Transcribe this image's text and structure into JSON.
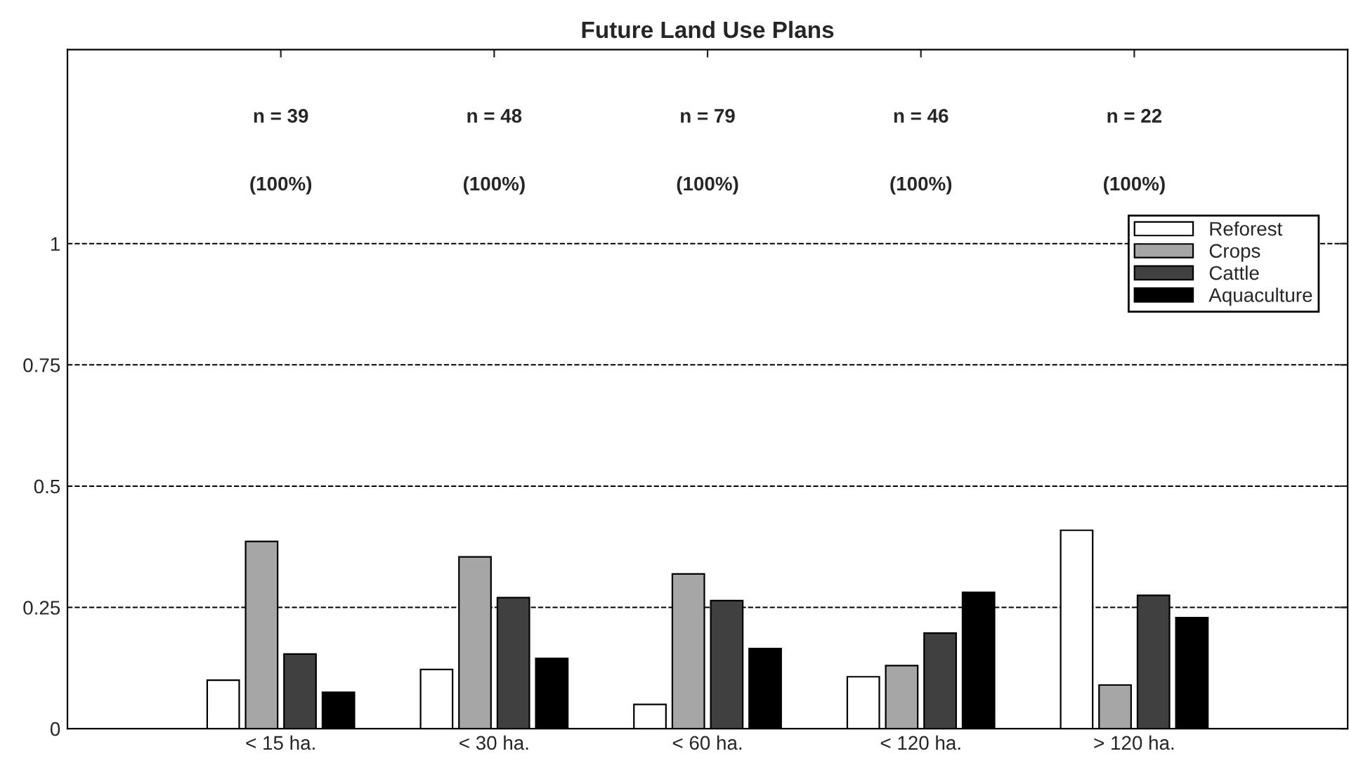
{
  "chart_data": {
    "type": "bar",
    "title": "Future Land Use Plans",
    "categories": [
      "< 15 ha.",
      "< 30 ha.",
      "< 60 ha.",
      "< 120 ha.",
      "> 120 ha."
    ],
    "series": [
      {
        "name": "Reforest",
        "color": "#ffffff",
        "values": [
          0.1,
          0.122,
          0.05,
          0.107,
          0.409
        ]
      },
      {
        "name": "Crops",
        "color": "#a6a6a6",
        "values": [
          0.386,
          0.354,
          0.319,
          0.13,
          0.09
        ]
      },
      {
        "name": "Cattle",
        "color": "#404040",
        "values": [
          0.154,
          0.27,
          0.264,
          0.197,
          0.275
        ]
      },
      {
        "name": "Aquaculture",
        "color": "#000000",
        "values": [
          0.075,
          0.145,
          0.165,
          0.281,
          0.229
        ]
      }
    ],
    "ylim": [
      0,
      1.4
    ],
    "yticks": [
      0,
      {
        "value": 0.25,
        "label": "0.25"
      },
      {
        "value": 0.5,
        "label": "0.5"
      },
      {
        "value": 0.75,
        "label": "0.75"
      },
      1
    ],
    "grid": "y",
    "legend": "top right",
    "annotations": [
      "n = 39",
      "(100%)",
      "n = 48",
      "(100%)",
      "n = 79",
      "(100%)",
      "n = 46",
      "(100%)",
      "n = 22",
      "(100%)"
    ]
  }
}
